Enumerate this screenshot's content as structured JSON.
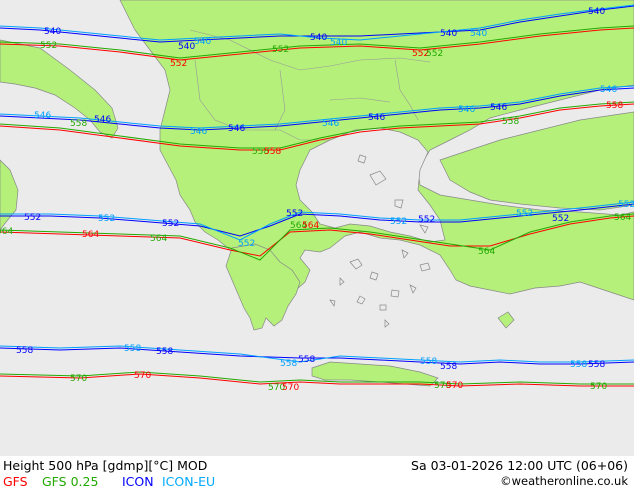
{
  "footer": {
    "title": "Height 500 hPa [gdmp][°C] MOD",
    "datetime": "Sa 03-01-2026 12:00 UTC (06+06)",
    "credit": "©weatheronline.co.uk",
    "legend": [
      {
        "label": "GFS",
        "color": "#ff0000"
      },
      {
        "label": "GFS 0.25",
        "color": "#22aa00"
      },
      {
        "label": "ICON",
        "color": "#0000ff"
      },
      {
        "label": "ICON-EU",
        "color": "#00aaff"
      }
    ]
  },
  "colors": {
    "land": "#b4f07a",
    "sea": "#ebebeb",
    "coast": "#888888",
    "gfs": "#ff0000",
    "gfs025": "#22aa00",
    "icon": "#0000ff",
    "iconeu": "#00a0ff"
  },
  "contour_labels": {
    "l540": "540",
    "l546": "546",
    "l552": "552",
    "l558": "558",
    "l564": "564",
    "l570": "570"
  }
}
